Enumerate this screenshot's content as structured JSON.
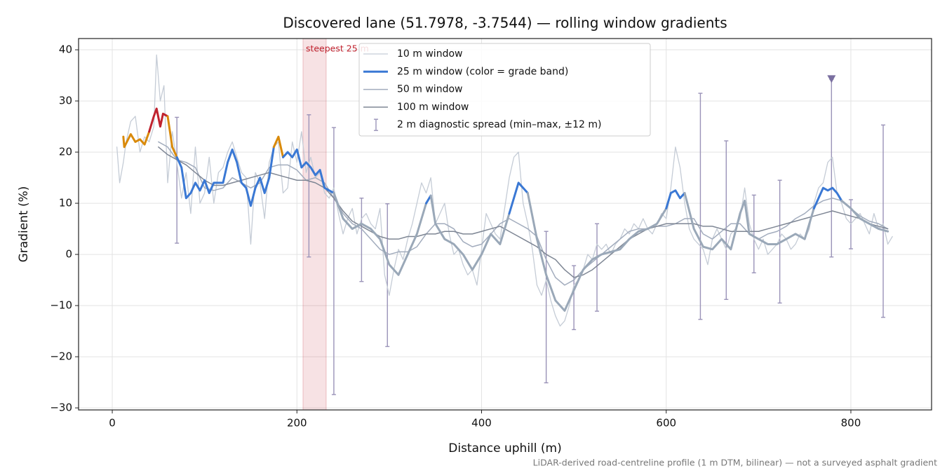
{
  "chart_data": {
    "type": "line",
    "title": "Discovered lane (51.7978, -3.7544) — rolling window gradients",
    "xlabel": "Distance uphill (m)",
    "ylabel": "Gradient (%)",
    "footnote": "LiDAR-derived road-centreline profile (1 m DTM, bilinear) — not a surveyed asphalt gradient",
    "xlim": [
      -36.5,
      887.4
    ],
    "ylim": [
      -30.4,
      42.2
    ],
    "xticks": [
      0,
      200,
      400,
      600,
      800
    ],
    "yticks": [
      {
        "value": -30,
        "label": "−30"
      },
      {
        "value": -20,
        "label": "−20"
      },
      {
        "value": -10,
        "label": "−10"
      },
      0,
      10,
      20,
      30,
      40
    ],
    "grid": true,
    "legend": "upper center",
    "annotation": {
      "text": "steepest 25 m",
      "span": [
        206.6,
        231.7
      ],
      "color": "#c0222e"
    },
    "series": [
      {
        "name": "10 m window",
        "color": "#c5ccd6",
        "width": 1.3,
        "x": [
          5,
          8,
          12,
          15,
          20,
          25,
          30,
          35,
          40,
          45,
          48,
          52,
          56,
          60,
          65,
          70,
          75,
          80,
          85,
          90,
          95,
          100,
          105,
          110,
          115,
          120,
          125,
          130,
          135,
          140,
          145,
          150,
          155,
          160,
          165,
          170,
          175,
          180,
          185,
          190,
          195,
          200,
          205,
          210,
          215,
          220,
          225,
          230,
          235,
          240,
          245,
          250,
          255,
          260,
          265,
          270,
          275,
          280,
          285,
          290,
          295,
          300,
          305,
          310,
          315,
          320,
          325,
          330,
          335,
          340,
          345,
          350,
          355,
          360,
          365,
          370,
          375,
          380,
          385,
          390,
          395,
          400,
          405,
          410,
          415,
          420,
          425,
          430,
          435,
          440,
          445,
          450,
          455,
          460,
          465,
          470,
          475,
          480,
          485,
          490,
          495,
          500,
          505,
          510,
          515,
          520,
          525,
          530,
          535,
          540,
          545,
          550,
          555,
          560,
          565,
          570,
          575,
          580,
          585,
          590,
          595,
          600,
          605,
          610,
          615,
          620,
          625,
          630,
          635,
          640,
          645,
          650,
          655,
          660,
          665,
          670,
          675,
          680,
          685,
          690,
          695,
          700,
          705,
          710,
          715,
          720,
          725,
          730,
          735,
          740,
          745,
          750,
          755,
          760,
          765,
          770,
          775,
          780,
          785,
          790,
          795,
          800,
          805,
          810,
          815,
          820,
          825,
          830,
          835,
          840,
          845
        ],
        "values": [
          21,
          14,
          18,
          22,
          26,
          27,
          20,
          23,
          22,
          25,
          39,
          30,
          33,
          14,
          24,
          18,
          11,
          16,
          8,
          21,
          10,
          12,
          19,
          10,
          16,
          17,
          20,
          22,
          19,
          16,
          15,
          2,
          16,
          14,
          7,
          18,
          21,
          22,
          12,
          13,
          22,
          18,
          24,
          16,
          19,
          15,
          16,
          12,
          11,
          13,
          8,
          4,
          7,
          9,
          4,
          7,
          8,
          6,
          5,
          9,
          -4,
          -8,
          -3,
          1,
          -1,
          3,
          6,
          10,
          14,
          12,
          15,
          6,
          8,
          10,
          4,
          0,
          1,
          -2,
          -4,
          -3,
          -6,
          1,
          8,
          6,
          4,
          3,
          9,
          15,
          19,
          20,
          10,
          6,
          1,
          -6,
          -8,
          -5,
          -9,
          -12,
          -14,
          -13,
          -10,
          -6,
          -5,
          -3,
          0,
          -1,
          2,
          1,
          2,
          0,
          2,
          3,
          5,
          4,
          6,
          5,
          7,
          5,
          4,
          6,
          8,
          7,
          13,
          21,
          17,
          10,
          5,
          3,
          2,
          1,
          -2,
          3,
          5,
          3,
          1,
          4,
          5,
          7,
          13,
          6,
          3,
          1,
          3,
          0,
          1,
          2,
          4,
          3,
          1,
          2,
          4,
          3,
          5,
          10,
          13,
          14,
          18,
          19,
          12,
          10,
          7,
          6,
          7,
          8,
          6,
          4,
          8,
          5,
          6,
          2,
          3.5
        ]
      },
      {
        "name": "25 m window (color = grade band)",
        "color": "#3a78d4",
        "width": 3,
        "band_thresholds": [
          10,
          20,
          25
        ],
        "band_colors": [
          "#9aa8b8",
          "#3a78d4",
          "#d98a0b",
          "#c0222e"
        ],
        "x": [
          12,
          13,
          20,
          25,
          30,
          35,
          40,
          45,
          48,
          52,
          55,
          60,
          65,
          70,
          75,
          80,
          85,
          90,
          95,
          100,
          105,
          110,
          120,
          125,
          130,
          135,
          140,
          145,
          150,
          155,
          160,
          165,
          170,
          175,
          180,
          185,
          190,
          195,
          200,
          205,
          210,
          215,
          220,
          225,
          230,
          240,
          250,
          260,
          270,
          280,
          290,
          300,
          310,
          320,
          330,
          340,
          345,
          350,
          360,
          370,
          380,
          390,
          400,
          410,
          420,
          430,
          440,
          445,
          450,
          460,
          470,
          480,
          490,
          500,
          510,
          520,
          530,
          540,
          550,
          560,
          570,
          580,
          590,
          600,
          605,
          610,
          615,
          620,
          630,
          640,
          650,
          660,
          670,
          680,
          685,
          690,
          700,
          710,
          720,
          730,
          740,
          750,
          760,
          765,
          770,
          775,
          780,
          785,
          790,
          800,
          810,
          820,
          830,
          840
        ],
        "values": [
          23,
          21,
          23.5,
          22,
          22.5,
          21.5,
          24,
          27,
          28.5,
          25,
          27.5,
          27,
          21,
          19,
          17,
          11,
          12,
          14,
          12.5,
          14.5,
          12,
          14,
          14,
          18,
          20.5,
          18,
          14,
          13,
          9.5,
          13,
          15,
          12,
          15,
          21,
          23,
          19,
          20,
          19,
          20.5,
          17,
          18,
          17,
          15.5,
          16.5,
          13,
          12,
          7,
          5,
          6,
          5,
          3,
          -2,
          -4,
          0,
          4,
          10,
          11.5,
          6,
          3,
          2,
          0,
          -3,
          0,
          4,
          2,
          8,
          14,
          13,
          12,
          3,
          -4,
          -9,
          -11,
          -7,
          -3,
          -1,
          0,
          0.5,
          1,
          3,
          4.5,
          5,
          6,
          9,
          12,
          12.5,
          11,
          12,
          5,
          1.5,
          1,
          3,
          1,
          8,
          10.5,
          4,
          3,
          2,
          2,
          3,
          4,
          3,
          9,
          11,
          13,
          12.5,
          13,
          12,
          10.5,
          9,
          7,
          6,
          5,
          4.5
        ]
      },
      {
        "name": "50 m window",
        "color": "#a2acbd",
        "width": 1.5,
        "x": [
          50,
          60,
          70,
          80,
          90,
          100,
          110,
          120,
          130,
          140,
          150,
          160,
          170,
          180,
          190,
          200,
          210,
          220,
          230,
          240,
          250,
          260,
          270,
          280,
          290,
          300,
          310,
          320,
          330,
          340,
          350,
          360,
          370,
          380,
          390,
          400,
          410,
          420,
          430,
          440,
          450,
          460,
          470,
          480,
          490,
          500,
          510,
          520,
          530,
          540,
          550,
          560,
          570,
          580,
          590,
          600,
          610,
          620,
          630,
          640,
          650,
          660,
          670,
          680,
          690,
          700,
          710,
          720,
          730,
          740,
          750,
          760,
          770,
          780,
          790,
          800,
          810,
          820,
          830,
          840
        ],
        "values": [
          22,
          21,
          18.5,
          18,
          17,
          13,
          12.5,
          13,
          15,
          14,
          13,
          14,
          17,
          17.5,
          17.5,
          16.5,
          14.5,
          15,
          14,
          11,
          8,
          6,
          5,
          3,
          1,
          0,
          0.5,
          0.5,
          1.5,
          4,
          6,
          6,
          5,
          2.5,
          1.5,
          2,
          4,
          6,
          7,
          6,
          5,
          3.5,
          -1,
          -4.5,
          -6,
          -5,
          -3,
          -1.5,
          0,
          1.5,
          3,
          4.5,
          5,
          5,
          5.5,
          5.5,
          6,
          7,
          7,
          4,
          3,
          4.5,
          6,
          6,
          4,
          3,
          4,
          4.5,
          5.5,
          7,
          8,
          9.5,
          10.5,
          11,
          10.5,
          9,
          7.5,
          6.5,
          6,
          5
        ]
      },
      {
        "name": "100 m window",
        "color": "#7e8694",
        "width": 1.5,
        "x": [
          50,
          60,
          70,
          80,
          90,
          100,
          110,
          120,
          130,
          140,
          150,
          160,
          170,
          180,
          190,
          200,
          210,
          220,
          230,
          240,
          250,
          260,
          270,
          280,
          290,
          300,
          310,
          320,
          330,
          340,
          350,
          360,
          370,
          380,
          390,
          400,
          410,
          420,
          430,
          440,
          450,
          460,
          470,
          480,
          490,
          500,
          510,
          520,
          530,
          540,
          550,
          560,
          570,
          580,
          590,
          600,
          610,
          620,
          630,
          640,
          650,
          660,
          670,
          680,
          690,
          700,
          710,
          720,
          730,
          740,
          750,
          760,
          770,
          780,
          790,
          800,
          810,
          820,
          830,
          840
        ],
        "values": [
          21,
          19.5,
          18.5,
          17.5,
          16,
          14.5,
          13.5,
          13.5,
          14,
          14.5,
          15,
          15.5,
          16,
          15.5,
          15,
          14.5,
          14.5,
          14,
          13,
          11,
          8.5,
          6.5,
          5.5,
          4.5,
          3.5,
          3,
          3,
          3.5,
          3.5,
          4,
          4,
          4.5,
          4.5,
          4,
          4,
          4.5,
          5,
          5.5,
          4.5,
          3.5,
          2.5,
          1.5,
          0,
          -1,
          -3,
          -4.5,
          -4,
          -3,
          -1.5,
          0,
          1.5,
          3,
          4,
          5,
          5.5,
          6,
          6,
          6,
          6,
          5.5,
          5.5,
          5,
          4.5,
          4.5,
          4.5,
          4.5,
          5,
          5.5,
          6,
          6.5,
          7,
          7.5,
          8,
          8.5,
          8,
          7.5,
          7,
          6,
          5.5,
          5
        ]
      }
    ],
    "errorbars": {
      "name": "2 m diagnostic spread (min–max, ±12 m)",
      "color": "#9a93b8",
      "x": [
        70,
        213,
        240,
        270,
        298,
        470,
        500,
        525,
        637,
        665,
        695,
        723,
        779,
        800,
        835
      ],
      "low": [
        2.2,
        -0.5,
        -27.4,
        -5.3,
        -18.0,
        -25.1,
        -14.7,
        -11.1,
        -12.7,
        -8.8,
        -3.6,
        -9.5,
        -0.5,
        1.1,
        -12.3
      ],
      "high": [
        26.8,
        27.3,
        24.8,
        11.0,
        9.9,
        4.5,
        -2.2,
        6.0,
        31.5,
        22.2,
        11.6,
        14.5,
        34.2,
        10.7,
        25.3
      ]
    },
    "peak_marker": {
      "x": 779,
      "y": 34.2,
      "color": "#7a6fa0"
    }
  }
}
